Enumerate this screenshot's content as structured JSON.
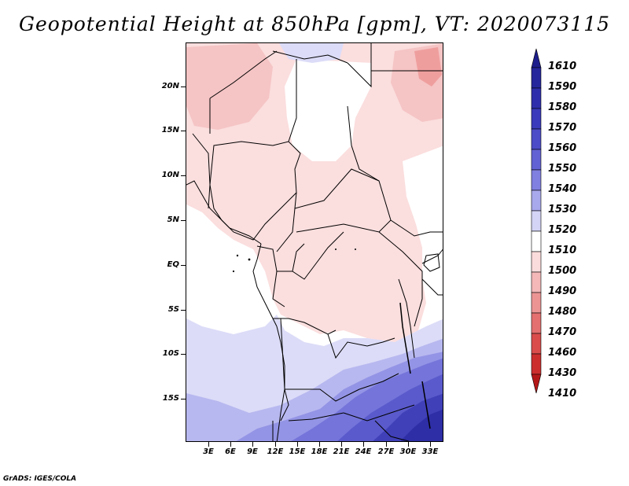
{
  "title": "Geopotential Height at 850hPa [gpm], VT: 2020073115",
  "footer": "GrADS: IGES/COLA",
  "lat_labels": [
    "20N",
    "15N",
    "10N",
    "5N",
    "EQ",
    "5S",
    "10S",
    "15S"
  ],
  "lon_labels": [
    "3E",
    "6E",
    "9E",
    "12E",
    "15E",
    "18E",
    "21E",
    "24E",
    "27E",
    "30E",
    "33E"
  ],
  "colorbar": {
    "levels": [
      "1610",
      "1590",
      "1580",
      "1570",
      "1560",
      "1550",
      "1540",
      "1530",
      "1520",
      "1510",
      "1500",
      "1490",
      "1480",
      "1470",
      "1460",
      "1430",
      "1410"
    ],
    "colors": [
      "#1e1e8c",
      "#26269c",
      "#2e2eac",
      "#3a3abc",
      "#4c4cc8",
      "#6262d4",
      "#8080e0",
      "#a8a8ec",
      "#d4d4f6",
      "#ffffff",
      "#fbdcdc",
      "#f4b8b8",
      "#ec9494",
      "#e47070",
      "#da4c4c",
      "#cc2e2e",
      "#b41818"
    ]
  }
}
